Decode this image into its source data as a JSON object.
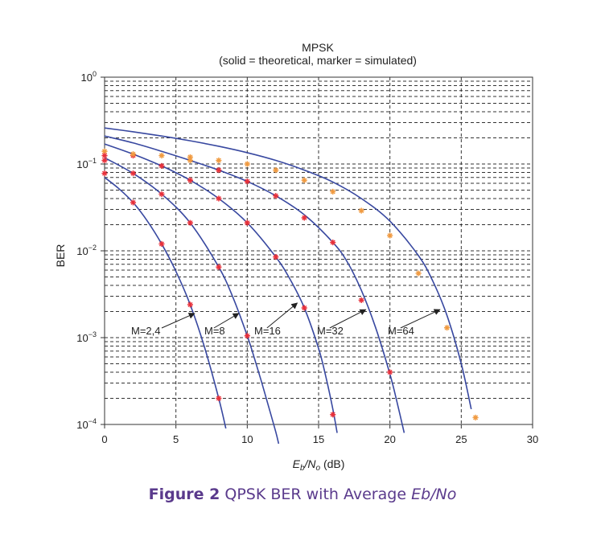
{
  "chart_data": {
    "type": "line",
    "title": "MPSK",
    "subtitle": "(solid = theoretical, marker = simulated)",
    "xlabel": "Eb/No (dB)",
    "xlabel_parts": {
      "E": "E",
      "b": "b",
      "slash": "/N",
      "o": "o",
      "unit": " (dB)"
    },
    "ylabel": "BER",
    "xlim": [
      0,
      30
    ],
    "ylim": [
      0.0001,
      1
    ],
    "yscale": "log",
    "grid": true,
    "x_ticks": [
      "0",
      "5",
      "10",
      "15",
      "20",
      "25",
      "30"
    ],
    "y_ticks": [
      {
        "base": "10",
        "exp": "0"
      },
      {
        "base": "10",
        "exp": "−1"
      },
      {
        "base": "10",
        "exp": "−2"
      },
      {
        "base": "10",
        "exp": "−3"
      },
      {
        "base": "10",
        "exp": "−4"
      }
    ],
    "colors": {
      "theory": "#3848a0",
      "marker_red": "#e8303a",
      "marker_orange": "#f09a40",
      "grid": "#333333"
    },
    "series": [
      {
        "name": "M=2,4",
        "theory": {
          "x": [
            0,
            1,
            2,
            3,
            4,
            5,
            6,
            7,
            8,
            8.5
          ],
          "y": [
            0.07,
            0.052,
            0.036,
            0.022,
            0.012,
            0.0058,
            0.0024,
            0.00078,
            0.0002,
            9e-05
          ]
        },
        "markers": [
          {
            "x": 0,
            "y": 0.078,
            "color": "red"
          },
          {
            "x": 2,
            "y": 0.036,
            "color": "red"
          },
          {
            "x": 4,
            "y": 0.012,
            "color": "red"
          },
          {
            "x": 6,
            "y": 0.0024,
            "color": "red"
          },
          {
            "x": 8,
            "y": 0.0002,
            "color": "red"
          }
        ]
      },
      {
        "name": "M=8",
        "theory": {
          "x": [
            0,
            2,
            4,
            6,
            8,
            9,
            10,
            10.5,
            11,
            11.5,
            12,
            12.2
          ],
          "y": [
            0.118,
            0.078,
            0.045,
            0.021,
            0.0065,
            0.0029,
            0.00105,
            0.00058,
            0.00031,
            0.00016,
            8.2e-05,
            6e-05
          ]
        },
        "markers": [
          {
            "x": 0,
            "y": 0.11,
            "color": "red"
          },
          {
            "x": 2,
            "y": 0.078,
            "color": "red"
          },
          {
            "x": 4,
            "y": 0.045,
            "color": "red"
          },
          {
            "x": 6,
            "y": 0.021,
            "color": "red"
          },
          {
            "x": 8,
            "y": 0.0065,
            "color": "red"
          },
          {
            "x": 10,
            "y": 0.00105,
            "color": "red"
          }
        ]
      },
      {
        "name": "M=16",
        "theory": {
          "x": [
            0,
            2,
            4,
            6,
            8,
            10,
            12,
            13,
            14,
            15,
            15.5,
            16,
            16.3
          ],
          "y": [
            0.17,
            0.13,
            0.095,
            0.065,
            0.04,
            0.021,
            0.0085,
            0.0047,
            0.0022,
            0.00075,
            0.00036,
            0.00015,
            8e-05
          ]
        },
        "markers": [
          {
            "x": 0,
            "y": 0.14,
            "color": "orange"
          },
          {
            "x": 2,
            "y": 0.125,
            "color": "red"
          },
          {
            "x": 4,
            "y": 0.095,
            "color": "red"
          },
          {
            "x": 6,
            "y": 0.065,
            "color": "red"
          },
          {
            "x": 8,
            "y": 0.04,
            "color": "red"
          },
          {
            "x": 10,
            "y": 0.021,
            "color": "red"
          },
          {
            "x": 12,
            "y": 0.0085,
            "color": "red"
          },
          {
            "x": 14,
            "y": 0.0022,
            "color": "red"
          },
          {
            "x": 16,
            "y": 0.00013,
            "color": "red"
          }
        ]
      },
      {
        "name": "M=32",
        "theory": {
          "x": [
            0,
            2,
            4,
            6,
            8,
            10,
            12,
            14,
            16,
            17,
            18,
            19,
            20,
            20.5,
            21
          ],
          "y": [
            0.21,
            0.175,
            0.14,
            0.11,
            0.085,
            0.063,
            0.043,
            0.026,
            0.0125,
            0.0075,
            0.0035,
            0.0013,
            0.00038,
            0.00018,
            8e-05
          ]
        },
        "markers": [
          {
            "x": 0,
            "y": 0.125,
            "color": "red"
          },
          {
            "x": 2,
            "y": 0.13,
            "color": "orange"
          },
          {
            "x": 6,
            "y": 0.11,
            "color": "orange"
          },
          {
            "x": 8,
            "y": 0.085,
            "color": "red"
          },
          {
            "x": 10,
            "y": 0.063,
            "color": "red"
          },
          {
            "x": 12,
            "y": 0.043,
            "color": "red"
          },
          {
            "x": 14,
            "y": 0.024,
            "color": "red"
          },
          {
            "x": 16,
            "y": 0.0125,
            "color": "red"
          },
          {
            "x": 18,
            "y": 0.0027,
            "color": "red"
          },
          {
            "x": 20,
            "y": 0.0004,
            "color": "red"
          }
        ]
      },
      {
        "name": "M=64",
        "theory": {
          "x": [
            0,
            2,
            4,
            6,
            8,
            10,
            12,
            14,
            16,
            18,
            20,
            22,
            23,
            24,
            25,
            25.7
          ],
          "y": [
            0.26,
            0.235,
            0.21,
            0.185,
            0.16,
            0.135,
            0.11,
            0.085,
            0.062,
            0.04,
            0.022,
            0.0088,
            0.0045,
            0.0018,
            0.0005,
            0.00015
          ]
        },
        "markers": [
          {
            "x": 4,
            "y": 0.125,
            "color": "orange"
          },
          {
            "x": 6,
            "y": 0.12,
            "color": "orange"
          },
          {
            "x": 8,
            "y": 0.11,
            "color": "orange"
          },
          {
            "x": 10,
            "y": 0.1,
            "color": "orange"
          },
          {
            "x": 12,
            "y": 0.085,
            "color": "orange"
          },
          {
            "x": 14,
            "y": 0.065,
            "color": "orange"
          },
          {
            "x": 16,
            "y": 0.048,
            "color": "orange"
          },
          {
            "x": 18,
            "y": 0.029,
            "color": "orange"
          },
          {
            "x": 20,
            "y": 0.015,
            "color": "orange"
          },
          {
            "x": 22,
            "y": 0.0055,
            "color": "orange"
          },
          {
            "x": 24,
            "y": 0.0013,
            "color": "orange"
          },
          {
            "x": 26,
            "y": 0.00012,
            "color": "orange"
          }
        ]
      }
    ],
    "annotations": [
      {
        "text": "M=2,4",
        "arrow_to": {
          "x": 6.3,
          "y": 0.0019
        }
      },
      {
        "text": "M=8",
        "arrow_to": {
          "x": 9.4,
          "y": 0.0019
        }
      },
      {
        "text": "M=16",
        "arrow_to": {
          "x": 13.5,
          "y": 0.0025
        }
      },
      {
        "text": "M=32",
        "arrow_to": {
          "x": 18.3,
          "y": 0.0021
        }
      },
      {
        "text": "M=64",
        "arrow_to": {
          "x": 23.5,
          "y": 0.0021
        }
      }
    ]
  },
  "caption": {
    "label": "Figure 2",
    "text": " QPSK BER with Average ",
    "italic": "Eb/No"
  }
}
